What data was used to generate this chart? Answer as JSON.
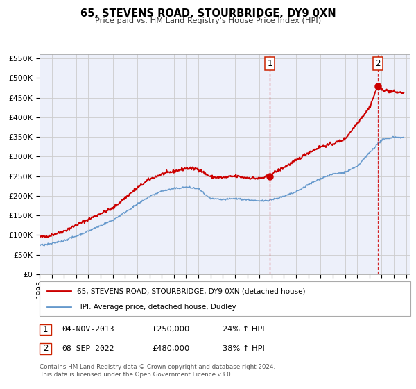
{
  "title": "65, STEVENS ROAD, STOURBRIDGE, DY9 0XN",
  "subtitle": "Price paid vs. HM Land Registry's House Price Index (HPI)",
  "ylim": [
    0,
    560000
  ],
  "xlim_start": 1995.0,
  "xlim_end": 2025.3,
  "yticks": [
    0,
    50000,
    100000,
    150000,
    200000,
    250000,
    300000,
    350000,
    400000,
    450000,
    500000,
    550000
  ],
  "ytick_labels": [
    "£0",
    "£50K",
    "£100K",
    "£150K",
    "£200K",
    "£250K",
    "£300K",
    "£350K",
    "£400K",
    "£450K",
    "£500K",
    "£550K"
  ],
  "xticks": [
    1995,
    1996,
    1997,
    1998,
    1999,
    2000,
    2001,
    2002,
    2003,
    2004,
    2005,
    2006,
    2007,
    2008,
    2009,
    2010,
    2011,
    2012,
    2013,
    2014,
    2015,
    2016,
    2017,
    2018,
    2019,
    2020,
    2021,
    2022,
    2023,
    2024,
    2025
  ],
  "red_line_color": "#cc0000",
  "blue_line_color": "#6699cc",
  "grid_color": "#cccccc",
  "bg_color": "#edf0fa",
  "sale1_x": 2013.84,
  "sale1_y": 250000,
  "sale1_label": "1",
  "sale1_date": "04-NOV-2013",
  "sale1_price": "£250,000",
  "sale1_hpi": "24% ↑ HPI",
  "sale2_x": 2022.69,
  "sale2_y": 480000,
  "sale2_label": "2",
  "sale2_date": "08-SEP-2022",
  "sale2_price": "£480,000",
  "sale2_hpi": "38% ↑ HPI",
  "red_years": [
    1995.0,
    1995.5,
    1996.0,
    1997.0,
    1998.0,
    1999.0,
    2000.0,
    2001.0,
    2002.0,
    2003.0,
    2004.0,
    2005.0,
    2006.0,
    2007.0,
    2008.0,
    2009.0,
    2010.0,
    2011.0,
    2012.0,
    2013.0,
    2013.84,
    2014.0,
    2015.0,
    2016.0,
    2017.0,
    2018.0,
    2019.0,
    2020.0,
    2021.0,
    2022.0,
    2022.69,
    2023.0,
    2024.0,
    2024.8
  ],
  "red_vals": [
    95000,
    96000,
    100000,
    110000,
    125000,
    140000,
    155000,
    168000,
    195000,
    220000,
    242000,
    255000,
    262000,
    270000,
    268000,
    248000,
    246000,
    250000,
    246000,
    244000,
    250000,
    256000,
    272000,
    290000,
    310000,
    325000,
    332000,
    345000,
    385000,
    425000,
    480000,
    470000,
    465000,
    462000
  ],
  "blue_years": [
    1995.0,
    1995.5,
    1996.0,
    1997.0,
    1998.0,
    1999.0,
    2000.0,
    2001.0,
    2002.0,
    2003.0,
    2004.0,
    2005.0,
    2006.0,
    2007.0,
    2008.0,
    2009.0,
    2010.0,
    2011.0,
    2012.0,
    2013.0,
    2014.0,
    2015.0,
    2016.0,
    2017.0,
    2018.0,
    2019.0,
    2020.0,
    2021.0,
    2022.0,
    2023.0,
    2024.0,
    2024.8
  ],
  "blue_vals": [
    74000,
    75000,
    78000,
    86000,
    97000,
    110000,
    124000,
    138000,
    158000,
    178000,
    198000,
    212000,
    218000,
    222000,
    218000,
    192000,
    190000,
    193000,
    190000,
    186000,
    190000,
    198000,
    210000,
    228000,
    244000,
    255000,
    260000,
    274000,
    310000,
    342000,
    350000,
    348000
  ],
  "legend_red_label": "65, STEVENS ROAD, STOURBRIDGE, DY9 0XN (detached house)",
  "legend_blue_label": "HPI: Average price, detached house, Dudley",
  "footer1": "Contains HM Land Registry data © Crown copyright and database right 2024.",
  "footer2": "This data is licensed under the Open Government Licence v3.0."
}
